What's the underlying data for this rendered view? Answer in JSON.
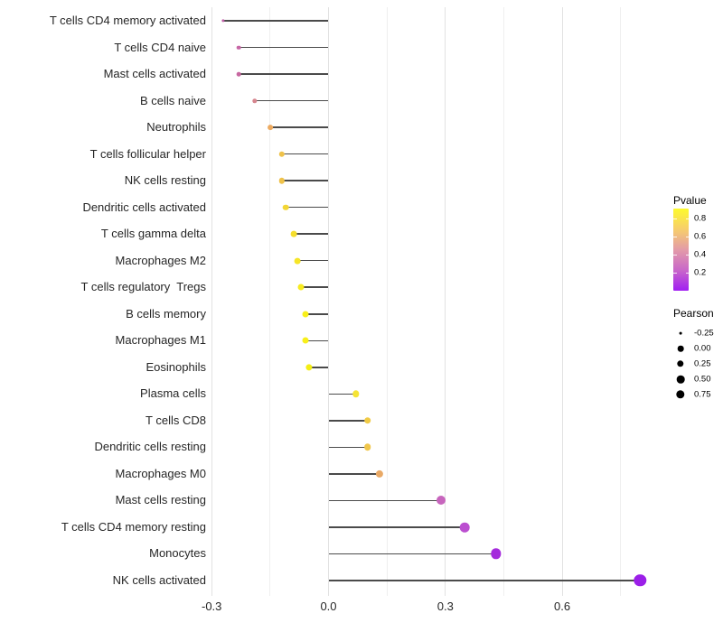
{
  "chart_data": {
    "type": "lollipop",
    "title": "",
    "xlabel": "",
    "ylabel": "",
    "background": "#ffffff",
    "grid": true,
    "x_tick_labels": [
      "-0.3",
      "0.0",
      "0.3",
      "0.6"
    ],
    "x_tick_values": [
      -0.3,
      0.0,
      0.3,
      0.6
    ],
    "x_minor_gridlines": [
      -0.15,
      0.15,
      0.45,
      0.75
    ],
    "xlim": [
      -0.305,
      0.825
    ],
    "stem_color": "#4a4a4a",
    "rows": [
      {
        "label": "T cells CD4 memory activated",
        "pearson": -0.27,
        "pvalue_est": 0.26,
        "color": "#bc5ba4",
        "radius": 1.6
      },
      {
        "label": "T cells CD4 naive",
        "pearson": -0.23,
        "pvalue_est": 0.3,
        "color": "#c767a6",
        "radius": 2.3
      },
      {
        "label": "Mast cells activated",
        "pearson": -0.23,
        "pvalue_est": 0.3,
        "color": "#c767a0",
        "radius": 2.3
      },
      {
        "label": "B cells naive",
        "pearson": -0.19,
        "pvalue_est": 0.42,
        "color": "#d6868f",
        "radius": 2.7
      },
      {
        "label": "Neutrophils",
        "pearson": -0.15,
        "pvalue_est": 0.55,
        "color": "#edaa60",
        "radius": 2.9
      },
      {
        "label": "T cells follicular helper",
        "pearson": -0.12,
        "pvalue_est": 0.62,
        "color": "#efc24a",
        "radius": 3.2
      },
      {
        "label": "NK cells resting",
        "pearson": -0.12,
        "pvalue_est": 0.62,
        "color": "#efc24a",
        "radius": 3.2
      },
      {
        "label": "Dendritic cells activated",
        "pearson": -0.11,
        "pvalue_est": 0.7,
        "color": "#f3d634",
        "radius": 3.3
      },
      {
        "label": "T cells gamma delta",
        "pearson": -0.09,
        "pvalue_est": 0.72,
        "color": "#f5de2d",
        "radius": 3.4
      },
      {
        "label": "Macrophages M2",
        "pearson": -0.08,
        "pvalue_est": 0.75,
        "color": "#f6e527",
        "radius": 3.4
      },
      {
        "label": "T cells regulatory  Tregs",
        "pearson": -0.07,
        "pvalue_est": 0.78,
        "color": "#f7eb1f",
        "radius": 3.5
      },
      {
        "label": "B cells memory",
        "pearson": -0.06,
        "pvalue_est": 0.8,
        "color": "#f8ef1a",
        "radius": 3.5
      },
      {
        "label": "Macrophages M1",
        "pearson": -0.06,
        "pvalue_est": 0.8,
        "color": "#f8ef1a",
        "radius": 3.5
      },
      {
        "label": "Eosinophils",
        "pearson": -0.05,
        "pvalue_est": 0.82,
        "color": "#f4ee14",
        "radius": 3.6
      },
      {
        "label": "Plasma cells",
        "pearson": 0.07,
        "pvalue_est": 0.74,
        "color": "#f5e434",
        "radius": 3.7
      },
      {
        "label": "T cells CD8",
        "pearson": 0.1,
        "pvalue_est": 0.64,
        "color": "#f0ca45",
        "radius": 3.8
      },
      {
        "label": "Dendritic cells resting",
        "pearson": 0.1,
        "pvalue_est": 0.63,
        "color": "#f0c64b",
        "radius": 3.8
      },
      {
        "label": "Macrophages M0",
        "pearson": 0.13,
        "pvalue_est": 0.55,
        "color": "#e9a966",
        "radius": 4.1
      },
      {
        "label": "Mast cells resting",
        "pearson": 0.29,
        "pvalue_est": 0.28,
        "color": "#c765bd",
        "radius": 5.0
      },
      {
        "label": "T cells CD4 memory resting",
        "pearson": 0.35,
        "pvalue_est": 0.22,
        "color": "#bb4fd0",
        "radius": 5.3
      },
      {
        "label": "Monocytes",
        "pearson": 0.43,
        "pvalue_est": 0.12,
        "color": "#a52bdc",
        "radius": 5.7
      },
      {
        "label": "NK cells activated",
        "pearson": 0.8,
        "pvalue_est": 0.03,
        "color": "#9b1fe8",
        "radius": 6.7
      }
    ],
    "legend": {
      "pvalue": {
        "title": "Pvalue",
        "tick_labels": [
          "0.8",
          "0.6",
          "0.4",
          "0.2"
        ],
        "gradient_top_to_bottom": [
          "#fdfa2e",
          "#f7ce6b",
          "#e39ba8",
          "#c967c9",
          "#a11ef2"
        ]
      },
      "pearson": {
        "title": "Pearson",
        "entries": [
          {
            "label": "-0.25",
            "radius": 1.4
          },
          {
            "label": "0.00",
            "radius": 3.3
          },
          {
            "label": "0.25",
            "radius": 3.7
          },
          {
            "label": "0.50",
            "radius": 4.3
          },
          {
            "label": "0.75",
            "radius": 4.7
          }
        ],
        "dot_color": "#000000"
      }
    }
  }
}
